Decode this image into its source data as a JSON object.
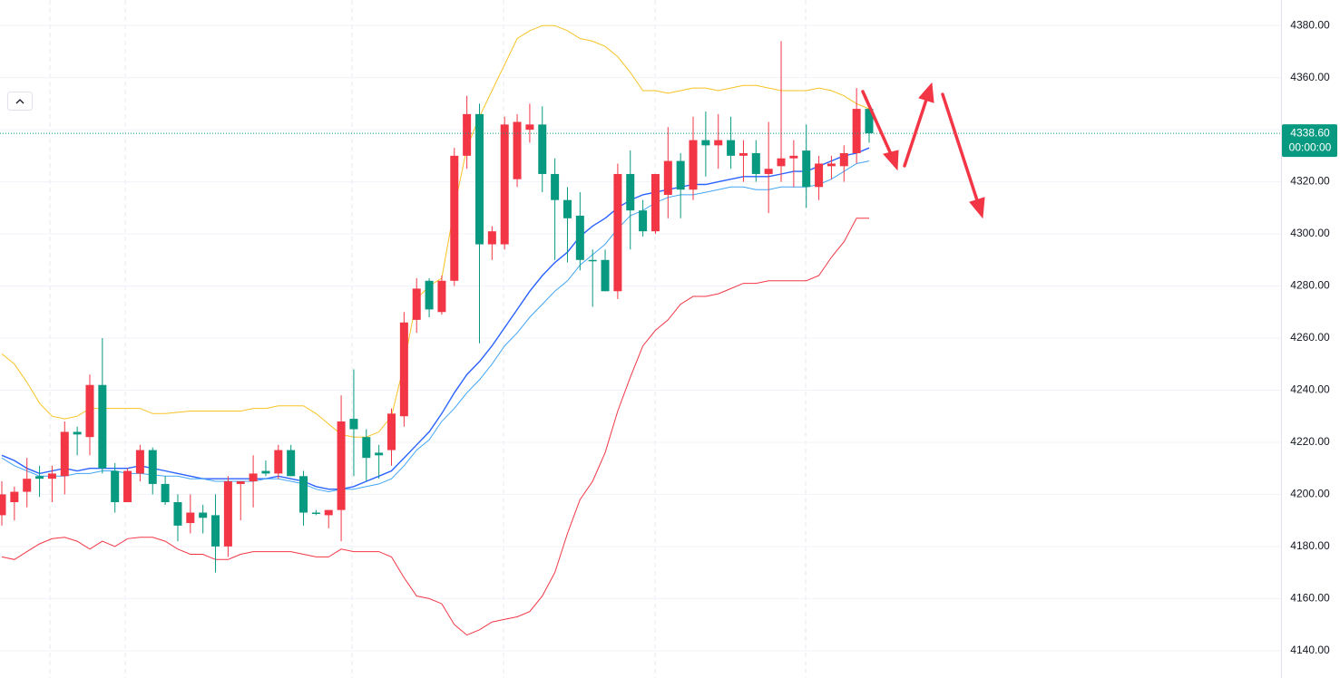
{
  "chart_data": {
    "type": "candlestick",
    "up_color": "#f23645",
    "down_color": "#089981",
    "ylim": [
      4129.5,
      4389.8
    ],
    "yticks": [
      {
        "value": 4140,
        "label": "4140.00"
      },
      {
        "value": 4160,
        "label": "4160.00"
      },
      {
        "value": 4180,
        "label": "4180.00"
      },
      {
        "value": 4200,
        "label": "4200.00"
      },
      {
        "value": 4220,
        "label": "4220.00"
      },
      {
        "value": 4240,
        "label": "4240.00"
      },
      {
        "value": 4260,
        "label": "4260.00"
      },
      {
        "value": 4280,
        "label": "4280.00"
      },
      {
        "value": 4300,
        "label": "4300.00"
      },
      {
        "value": 4320,
        "label": "4320.00"
      },
      {
        "value": 4340,
        "label": "4340.00"
      },
      {
        "value": 4360,
        "label": "4360.00"
      },
      {
        "value": 4380,
        "label": "4380.00"
      }
    ],
    "grid": true,
    "open": [
      4192,
      4197,
      4201,
      4207,
      4206,
      4207,
      4224,
      4222,
      4242,
      4209,
      4197,
      4208,
      4217,
      4204,
      4197,
      4189,
      4193,
      4192,
      4180,
      4204,
      4205,
      4209,
      4208,
      4217,
      4207,
      4193,
      4192,
      4194,
      4229,
      4222,
      4216,
      4217,
      4230,
      4267,
      4282,
      4270,
      4282,
      4330,
      4346,
      4296,
      4296,
      4321,
      4340,
      4342,
      4323,
      4313,
      4307,
      4290,
      4290,
      4278,
      4323,
      4309,
      4301,
      4315,
      4328,
      4317,
      4336,
      4334,
      4336,
      4330,
      4331,
      4323,
      4326,
      4329,
      4332,
      4318,
      4326,
      4326,
      4331,
      4348
    ],
    "high": [
      4205,
      4203,
      4214,
      4211,
      4211,
      4228,
      4226,
      4246,
      4260,
      4212,
      4210,
      4219,
      4218,
      4207,
      4200,
      4200,
      4196,
      4200,
      4207,
      4205,
      4215,
      4213,
      4219,
      4219,
      4209,
      4194,
      4194,
      4238,
      4248,
      4225,
      4219,
      4233,
      4270,
      4283,
      4283,
      4284,
      4333,
      4353,
      4350,
      4303,
      4345,
      4346,
      4350,
      4349,
      4329,
      4318,
      4316,
      4294,
      4294,
      4327,
      4332,
      4313,
      4323,
      4341,
      4331,
      4345,
      4347,
      4346,
      4345,
      4336,
      4336,
      4343,
      4374,
      4336,
      4342,
      4330,
      4330,
      4334,
      4356,
      4350
    ],
    "low": [
      4188,
      4190,
      4195,
      4199,
      4197,
      4200,
      4215,
      4215,
      4208,
      4193,
      4197,
      4205,
      4200,
      4196,
      4182,
      4185,
      4185,
      4170,
      4176,
      4190,
      4195,
      4207,
      4206,
      4207,
      4188,
      4192,
      4187,
      4182,
      4207,
      4205,
      4206,
      4211,
      4226,
      4262,
      4268,
      4269,
      4280,
      4325,
      4258,
      4290,
      4294,
      4318,
      4335,
      4316,
      4290,
      4289,
      4286,
      4272,
      4278,
      4275,
      4294,
      4299,
      4300,
      4306,
      4306,
      4313,
      4322,
      4325,
      4325,
      4320,
      4320,
      4308,
      4320,
      4318,
      4310,
      4313,
      4321,
      4320,
      4327,
      4335
    ],
    "close": [
      4200,
      4201,
      4206,
      4206,
      4208,
      4224,
      4223,
      4242,
      4210,
      4197,
      4209,
      4217,
      4204,
      4197,
      4188,
      4193,
      4191,
      4180,
      4205,
      4205,
      4208,
      4208,
      4217,
      4207,
      4193,
      4192.5,
      4194,
      4228,
      4225,
      4214,
      4215,
      4231,
      4266,
      4279,
      4271,
      4282,
      4330,
      4346,
      4296,
      4301,
      4342,
      4343,
      4342,
      4323,
      4313,
      4306,
      4290,
      4289.5,
      4278,
      4323,
      4309,
      4301,
      4323,
      4328,
      4317,
      4336,
      4334,
      4336,
      4330,
      4331,
      4323,
      4325,
      4329,
      4330,
      4318,
      4327,
      4327,
      4331,
      4348,
      4338.6
    ],
    "overlays": [
      {
        "color": "#f7c325",
        "values": [
          4254,
          4250,
          4243,
          4235,
          4230,
          4229,
          4230,
          4233,
          4233,
          4233,
          4233,
          4233,
          4231,
          4231,
          4231.5,
          4232,
          4232,
          4232,
          4232,
          4232,
          4233,
          4233,
          4234,
          4234,
          4234,
          4231,
          4227,
          4223,
          4222,
          4222,
          4224,
          4230,
          4250,
          4275,
          4280,
          4283,
          4310,
          4333,
          4345,
          4355,
          4365,
          4375,
          4378,
          4380,
          4380,
          4378,
          4375,
          4374,
          4372,
          4368,
          4362,
          4355,
          4355,
          4354,
          4355,
          4356,
          4356,
          4355,
          4356,
          4357,
          4357,
          4356,
          4355,
          4355,
          4355,
          4356,
          4355,
          4353,
          4350,
          4348
        ]
      },
      {
        "color": "#f23645",
        "values": [
          4176,
          4175,
          4178,
          4181,
          4183,
          4183.5,
          4182,
          4179,
          4182,
          4180,
          4183,
          4183.5,
          4183.5,
          4182,
          4179,
          4177,
          4177,
          4175,
          4175,
          4177,
          4178,
          4178,
          4178,
          4178,
          4177,
          4176,
          4176,
          4179,
          4178,
          4178,
          4178,
          4176,
          4168,
          4161,
          4160,
          4158,
          4150,
          4146,
          4148,
          4151,
          4152,
          4153,
          4155,
          4161,
          4170,
          4185,
          4198,
          4205,
          4216,
          4232,
          4245,
          4257,
          4263,
          4267,
          4273,
          4276,
          4276,
          4277,
          4279,
          4281,
          4281,
          4282,
          4282,
          4282,
          4282,
          4284,
          4291,
          4297,
          4306,
          4306
        ]
      },
      {
        "color": "#2962ff",
        "width": 1.4,
        "values": [
          4215,
          4213,
          4210,
          4208,
          4209,
          4210,
          4209,
          4210,
          4210,
          4210,
          4210,
          4211,
          4210,
          4209,
          4208,
          4207,
          4206,
          4206,
          4206,
          4206,
          4206,
          4206,
          4207,
          4206,
          4205,
          4203,
          4202,
          4202,
          4203,
          4205,
          4207,
          4209,
          4214,
          4219,
          4224,
          4231,
          4239,
          4246,
          4251,
          4257,
          4264,
          4271,
          4278,
          4284,
          4289,
          4293,
          4299,
          4303,
          4306,
          4310,
          4313,
          4315,
          4316,
          4317,
          4318,
          4319,
          4319,
          4320,
          4321,
          4322,
          4322,
          4322,
          4323,
          4324,
          4324,
          4326,
          4328,
          4330,
          4331,
          4333
        ]
      },
      {
        "color": "#42a5f5",
        "width": 1,
        "values": [
          4214,
          4211,
          4209,
          4207,
          4207,
          4207,
          4208,
          4208,
          4209,
          4209,
          4208,
          4208,
          4207.5,
          4207,
          4207,
          4206,
          4206,
          4205,
          4205,
          4205,
          4205,
          4206,
          4206,
          4205,
          4204,
          4202,
          4201,
          4202,
          4202,
          4203,
          4204,
          4206,
          4211,
          4217,
          4221,
          4228,
          4233,
          4239,
          4244,
          4250,
          4257,
          4262,
          4268,
          4273,
          4278,
          4282,
          4288,
          4292,
          4296,
          4302,
          4307,
          4309,
          4312,
          4314,
          4315,
          4315,
          4316,
          4317,
          4318,
          4318,
          4317,
          4317,
          4318,
          4318,
          4318,
          4319,
          4321,
          4324,
          4327,
          4328
        ]
      }
    ],
    "last_price": {
      "value": 4338.6,
      "label": "4338.60"
    },
    "countdown": "00:00:00"
  }
}
